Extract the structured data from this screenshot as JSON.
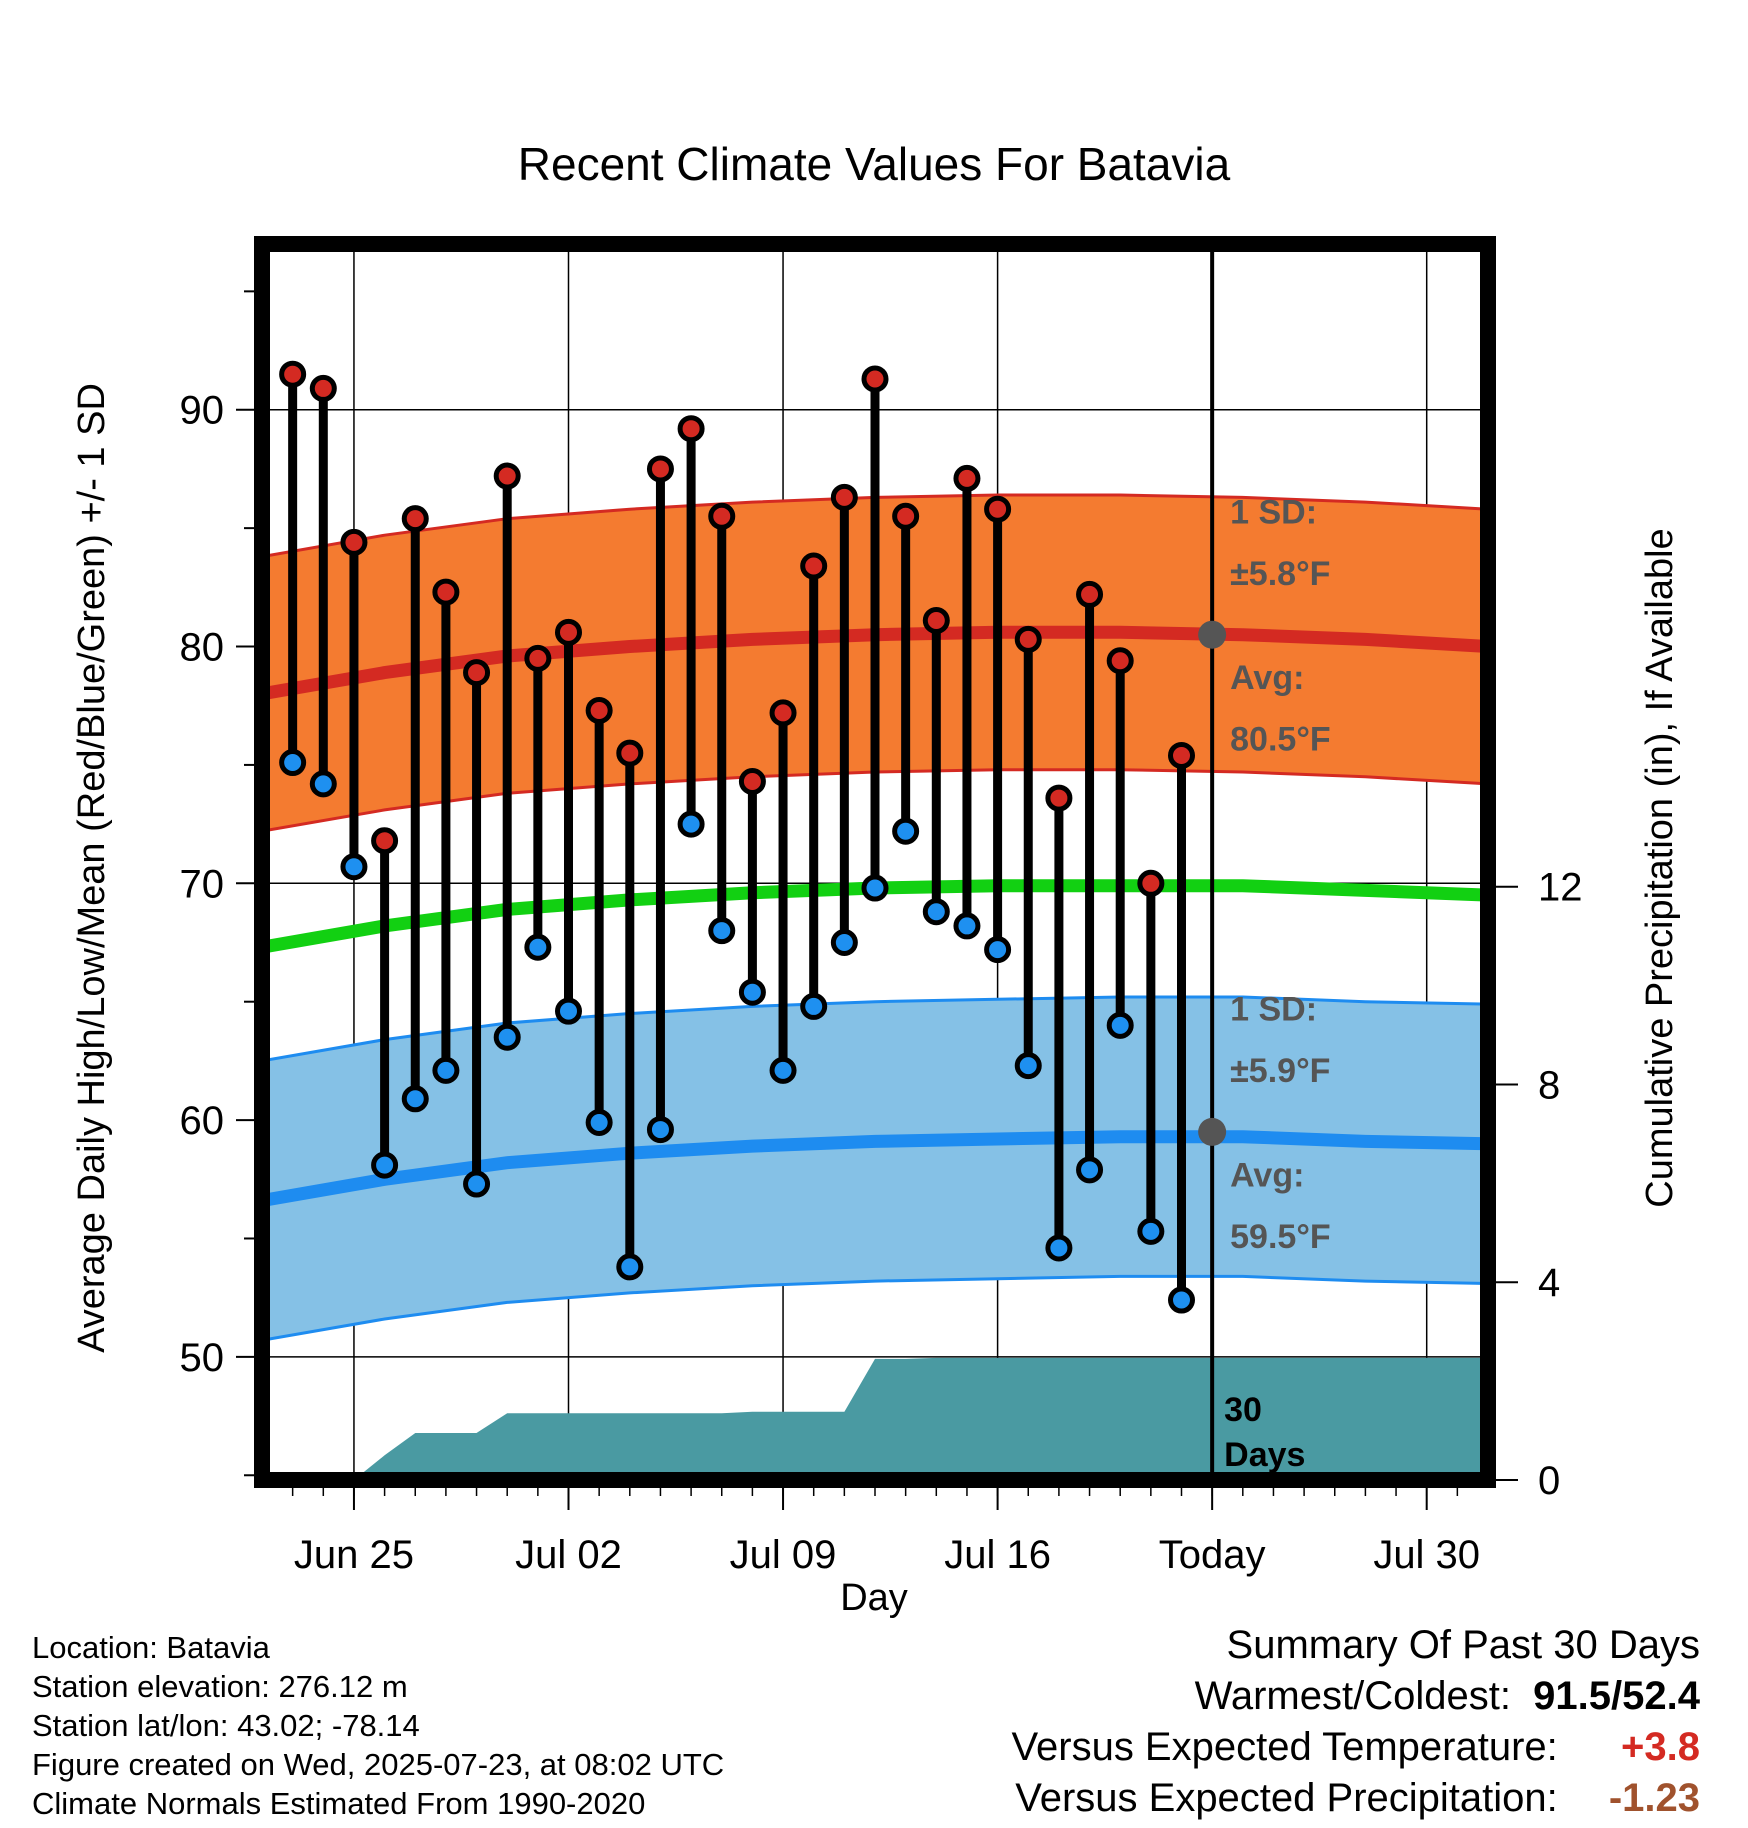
{
  "chart_data": {
    "type": "line",
    "title": "Recent Climate Values For Batavia",
    "xlabel": "Day",
    "ylabel": "Average Daily High/Low/Mean (Red/Blue/Green) +/- 1 SD",
    "y2label": "Cumulative Precipitation (in), If Available",
    "x_ticks": [
      "Jun 25",
      "Jul 02",
      "Jul 09",
      "Jul 16",
      "Today",
      "Jul 30"
    ],
    "y_ticks": [
      "50",
      "60",
      "70",
      "80",
      "90"
    ],
    "y2_ticks": [
      "0",
      "4",
      "8",
      "12"
    ],
    "ylim": [
      44.8,
      97
    ],
    "y2lim": [
      0,
      25
    ],
    "x_range_days": [
      "Jun 22",
      "Aug 01"
    ],
    "grid": true,
    "today": "Jul 23",
    "days": [
      "Jun 23",
      "Jun 24",
      "Jun 25",
      "Jun 26",
      "Jun 27",
      "Jun 28",
      "Jun 29",
      "Jun 30",
      "Jul 01",
      "Jul 02",
      "Jul 03",
      "Jul 04",
      "Jul 05",
      "Jul 06",
      "Jul 07",
      "Jul 08",
      "Jul 09",
      "Jul 10",
      "Jul 11",
      "Jul 12",
      "Jul 13",
      "Jul 14",
      "Jul 15",
      "Jul 16",
      "Jul 17",
      "Jul 18",
      "Jul 19",
      "Jul 20",
      "Jul 21",
      "Jul 22"
    ],
    "observed_high": [
      91.5,
      90.9,
      84.4,
      71.8,
      85.4,
      82.3,
      78.9,
      87.2,
      79.5,
      80.6,
      77.3,
      75.5,
      87.5,
      89.2,
      85.5,
      74.3,
      77.2,
      83.4,
      86.3,
      91.3,
      85.5,
      81.1,
      87.1,
      85.8,
      80.3,
      73.6,
      82.2,
      79.4,
      70.0,
      75.4
    ],
    "observed_low": [
      75.1,
      74.2,
      70.7,
      58.1,
      60.9,
      62.1,
      57.3,
      63.5,
      67.3,
      64.6,
      59.9,
      53.8,
      59.6,
      72.5,
      68.0,
      65.4,
      62.1,
      64.8,
      67.5,
      69.8,
      72.2,
      68.8,
      68.2,
      67.2,
      62.3,
      54.6,
      57.9,
      64.0,
      55.3,
      52.4
    ],
    "normal_days": [
      "Jun 22",
      "Jun 26",
      "Jun 30",
      "Jul 04",
      "Jul 08",
      "Jul 12",
      "Jul 16",
      "Jul 20",
      "Jul 24",
      "Jul 28",
      "Aug 01"
    ],
    "normal_high": [
      78.0,
      78.9,
      79.6,
      80.0,
      80.3,
      80.5,
      80.6,
      80.6,
      80.5,
      80.3,
      80.0
    ],
    "normal_mean": [
      67.3,
      68.2,
      68.9,
      69.3,
      69.6,
      69.8,
      69.9,
      69.9,
      69.9,
      69.7,
      69.5
    ],
    "normal_low": [
      56.6,
      57.5,
      58.2,
      58.6,
      58.9,
      59.1,
      59.2,
      59.3,
      59.3,
      59.1,
      59.0
    ],
    "sd_high": 5.8,
    "sd_low": 5.9,
    "cum_precip_days": [
      "Jun 25",
      "Jun 26",
      "Jun 27",
      "Jun 28",
      "Jun 29",
      "Jun 30",
      "Jul 01",
      "Jul 02",
      "Jul 03",
      "Jul 04",
      "Jul 05",
      "Jul 06",
      "Jul 07",
      "Jul 08",
      "Jul 09",
      "Jul 10",
      "Jul 11",
      "Jul 12",
      "Jul 13",
      "Jul 14",
      "Jul 15",
      "Jul 16",
      "Jul 17",
      "Jul 18",
      "Jul 19",
      "Jul 20",
      "Jul 21",
      "Jul 22",
      "Jul 23",
      "Aug 01"
    ],
    "cum_precip": [
      0.0,
      0.5,
      0.95,
      0.95,
      0.95,
      1.35,
      1.35,
      1.35,
      1.35,
      1.35,
      1.35,
      1.35,
      1.35,
      1.38,
      1.38,
      1.38,
      1.38,
      2.45,
      2.45,
      2.47,
      2.47,
      2.47,
      2.47,
      2.47,
      2.47,
      2.47,
      2.47,
      2.47,
      2.47,
      2.47
    ],
    "annotations": {
      "high_sd_label": "1 SD:",
      "high_sd_value": "±5.8°F",
      "high_avg_label": "Avg:",
      "high_avg_value": "80.5°F",
      "low_sd_label": "1 SD:",
      "low_sd_value": "±5.9°F",
      "low_avg_label": "Avg:",
      "low_avg_value": "59.5°F",
      "precip_days_line1": "30",
      "precip_days_line2": "Days"
    },
    "colors": {
      "high_band": "#f47b30",
      "high_line": "#d42a22",
      "low_band": "#85c1e6",
      "low_line": "#1e8cf0",
      "mean_line": "#12d012",
      "precip": "#4a9aa2",
      "high_dot": "#d42a22",
      "low_dot": "#1e90f0",
      "annotation": "#555555"
    }
  },
  "info": {
    "location": "Location: Batavia",
    "elevation": "Station elevation: 276.12 m",
    "latlon": "Station lat/lon: 43.02; -78.14",
    "created": "Figure created on Wed, 2025-07-23, at 08:02 UTC",
    "normals": "Climate Normals Estimated From 1990-2020"
  },
  "summary": {
    "title": "Summary Of Past 30 Days",
    "warmest_coldest_label": "Warmest/Coldest:",
    "warmest_coldest_value": "91.5/52.4",
    "temp_label": "Versus Expected Temperature:",
    "temp_value": "+3.8",
    "temp_color": "#d42a22",
    "precip_label": "Versus Expected Precipitation:",
    "precip_value": "-1.23",
    "precip_color": "#a0522d"
  }
}
